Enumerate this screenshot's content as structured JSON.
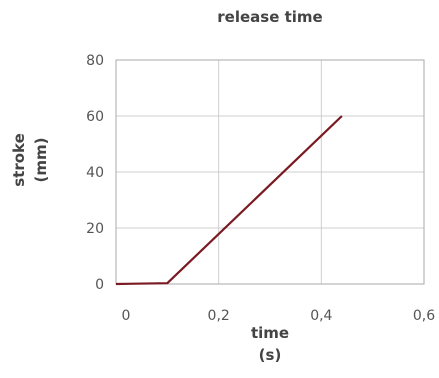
{
  "chart_data": {
    "type": "line",
    "title": "release time",
    "xlabel": [
      "time",
      "(s)"
    ],
    "ylabel": [
      "stroke",
      "(mm)"
    ],
    "xlim": [
      0,
      0.6
    ],
    "ylim": [
      0,
      80
    ],
    "x_ticks": [
      "0",
      "0,2",
      "0,4",
      "0,6"
    ],
    "y_ticks": [
      "0",
      "20",
      "40",
      "60",
      "80"
    ],
    "grid": true,
    "series": [
      {
        "color": "#7a1a22",
        "x": [
          0,
          0.1,
          0.44
        ],
        "y": [
          0,
          0.3,
          60
        ]
      }
    ]
  }
}
